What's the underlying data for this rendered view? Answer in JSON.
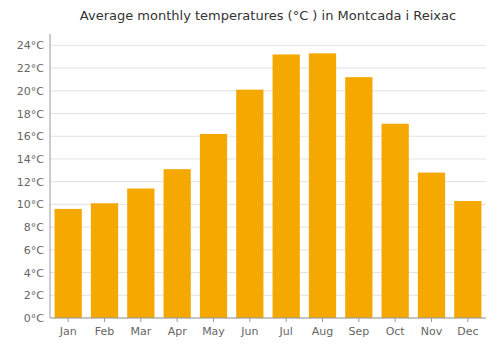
{
  "chart_data": {
    "type": "bar",
    "title": "Average monthly temperatures (°C ) in Montcada i Reixac",
    "categories": [
      "Jan",
      "Feb",
      "Mar",
      "Apr",
      "May",
      "Jun",
      "Jul",
      "Aug",
      "Sep",
      "Oct",
      "Nov",
      "Dec"
    ],
    "values": [
      9.6,
      10.1,
      11.4,
      13.1,
      16.2,
      20.1,
      23.2,
      23.3,
      21.2,
      17.1,
      12.8,
      10.3
    ],
    "color": "#F5A800",
    "ylim": [
      0,
      25
    ],
    "yticks": [
      {
        "value": 0,
        "label": "0°C"
      },
      {
        "value": 2,
        "label": "2°C"
      },
      {
        "value": 4,
        "label": "4°C"
      },
      {
        "value": 6,
        "label": "6°C"
      },
      {
        "value": 8,
        "label": "8°C"
      },
      {
        "value": 10,
        "label": "10°C"
      },
      {
        "value": 12,
        "label": "12°C"
      },
      {
        "value": 14,
        "label": "14°C"
      },
      {
        "value": 16,
        "label": "16°C"
      },
      {
        "value": 18,
        "label": "18°C"
      },
      {
        "value": 20,
        "label": "20°C"
      },
      {
        "value": 22,
        "label": "22°C"
      },
      {
        "value": 24,
        "label": "24°C"
      }
    ],
    "grid": true
  }
}
